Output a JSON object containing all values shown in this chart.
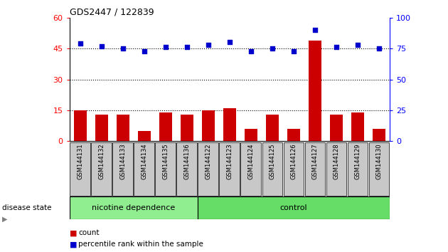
{
  "title": "GDS2447 / 122839",
  "samples": [
    "GSM144131",
    "GSM144132",
    "GSM144133",
    "GSM144134",
    "GSM144135",
    "GSM144136",
    "GSM144122",
    "GSM144123",
    "GSM144124",
    "GSM144125",
    "GSM144126",
    "GSM144127",
    "GSM144128",
    "GSM144129",
    "GSM144130"
  ],
  "counts": [
    15,
    13,
    13,
    5,
    14,
    13,
    15,
    16,
    6,
    13,
    6,
    49,
    13,
    14,
    6
  ],
  "percentiles": [
    79,
    77,
    75,
    73,
    76,
    76,
    78,
    80,
    73,
    75,
    73,
    90,
    76,
    78,
    75
  ],
  "groups": [
    {
      "label": "nicotine dependence",
      "start": 0,
      "end": 6,
      "color": "#90EE90"
    },
    {
      "label": "control",
      "start": 6,
      "end": 15,
      "color": "#66DD66"
    }
  ],
  "bar_color": "#CC0000",
  "dot_color": "#0000CC",
  "left_yticks": [
    0,
    15,
    30,
    45,
    60
  ],
  "right_yticks": [
    0,
    25,
    50,
    75,
    100
  ],
  "left_ylim": [
    0,
    60
  ],
  "right_ylim": [
    0,
    100
  ],
  "grid_lines": [
    15,
    30,
    45
  ],
  "bg_color": "#ffffff",
  "axis_color": "red",
  "right_axis_color": "blue",
  "figsize": [
    6.3,
    3.54
  ],
  "dpi": 100
}
